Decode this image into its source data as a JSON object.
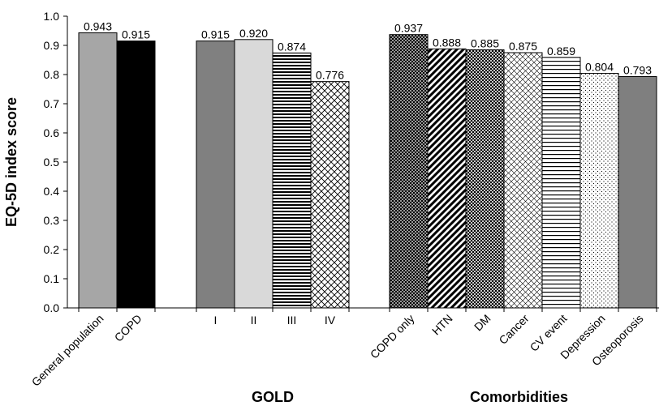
{
  "chart_data": {
    "type": "bar",
    "ylabel": "EQ-5D index score",
    "ylim": [
      0.0,
      1.0
    ],
    "yticks": [
      "0.0",
      "0.1",
      "0.2",
      "0.3",
      "0.4",
      "0.5",
      "0.6",
      "0.7",
      "0.8",
      "0.9",
      "1.0"
    ],
    "grid": false,
    "groups": [
      {
        "label": "",
        "bars": [
          {
            "category": "General population",
            "value": 0.943,
            "label": "0.943",
            "fill": "solid",
            "color": "#a6a6a6",
            "rotated": true
          },
          {
            "category": "COPD",
            "value": 0.915,
            "label": "0.915",
            "fill": "solid",
            "color": "#000000",
            "rotated": true
          }
        ]
      },
      {
        "label": "GOLD",
        "bars": [
          {
            "category": "I",
            "value": 0.915,
            "label": "0.915",
            "fill": "solid",
            "color": "#808080",
            "rotated": false
          },
          {
            "category": "II",
            "value": 0.92,
            "label": "0.920",
            "fill": "solid",
            "color": "#d9d9d9",
            "rotated": false
          },
          {
            "category": "III",
            "value": 0.874,
            "label": "0.874",
            "fill": "hstripes",
            "color": "#000000",
            "rotated": false
          },
          {
            "category": "IV",
            "value": 0.776,
            "label": "0.776",
            "fill": "crosshatch",
            "color": "#000000",
            "rotated": false
          }
        ]
      },
      {
        "label": "Comorbidities",
        "bars": [
          {
            "category": "COPD only",
            "value": 0.937,
            "label": "0.937",
            "fill": "densegrid",
            "color": "#000000",
            "rotated": true
          },
          {
            "category": "HTN",
            "value": 0.888,
            "label": "0.888",
            "fill": "diagonal",
            "color": "#000000",
            "rotated": true
          },
          {
            "category": "DM",
            "value": 0.885,
            "label": "0.885",
            "fill": "checker",
            "color": "#000000",
            "rotated": true
          },
          {
            "category": "Cancer",
            "value": 0.875,
            "label": "0.875",
            "fill": "diamond",
            "color": "#000000",
            "rotated": true
          },
          {
            "category": "CV event",
            "value": 0.859,
            "label": "0.859",
            "fill": "hlines",
            "color": "#000000",
            "rotated": true
          },
          {
            "category": "Depression",
            "value": 0.804,
            "label": "0.804",
            "fill": "dots",
            "color": "#000000",
            "rotated": true
          },
          {
            "category": "Osteoporosis",
            "value": 0.793,
            "label": "0.793",
            "fill": "solid",
            "color": "#7f7f7f",
            "rotated": true
          }
        ]
      }
    ]
  }
}
